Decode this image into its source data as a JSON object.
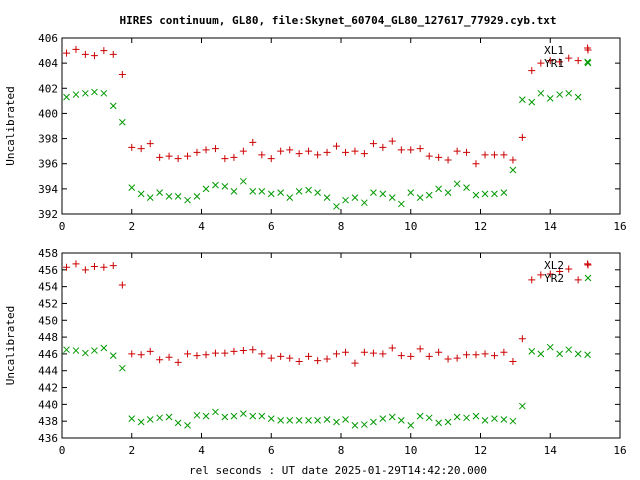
{
  "title": "HIRES continuum, GL80, file:Skynet_60704_GL80_127617_77929.cyb.txt",
  "xlabel": "rel seconds : UT date 2025-01-29T14:42:20.000",
  "colors": {
    "series1": "#cc0000",
    "series2": "#009900"
  },
  "chart_data": [
    {
      "type": "scatter",
      "ylabel": "Uncalibrated",
      "xlim": [
        0,
        16
      ],
      "ylim": [
        392,
        406
      ],
      "xticks": [
        "0",
        "2",
        "4",
        "6",
        "8",
        "10",
        "12",
        "14",
        "16"
      ],
      "yticks": [
        "392",
        "394",
        "396",
        "398",
        "400",
        "402",
        "404",
        "406"
      ],
      "legend": "top-right",
      "series": [
        {
          "name": "XL1",
          "marker": "plus",
          "x": [
            0.13,
            0.4,
            0.67,
            0.93,
            1.2,
            1.47,
            1.73,
            2.0,
            2.27,
            2.53,
            2.8,
            3.07,
            3.33,
            3.6,
            3.87,
            4.13,
            4.4,
            4.67,
            4.93,
            5.2,
            5.47,
            5.73,
            6.0,
            6.27,
            6.53,
            6.8,
            7.07,
            7.33,
            7.6,
            7.87,
            8.13,
            8.4,
            8.67,
            8.93,
            9.2,
            9.47,
            9.73,
            10.0,
            10.27,
            10.53,
            10.8,
            11.07,
            11.33,
            11.6,
            11.87,
            12.13,
            12.4,
            12.67,
            12.93,
            13.2,
            13.47,
            13.73,
            14.0,
            14.27,
            14.53,
            14.8,
            15.07
          ],
          "y": [
            404.8,
            405.1,
            404.7,
            404.6,
            405.0,
            404.7,
            403.1,
            397.3,
            397.2,
            397.6,
            396.5,
            396.6,
            396.4,
            396.6,
            396.9,
            397.1,
            397.2,
            396.4,
            396.5,
            397.0,
            397.7,
            396.7,
            396.4,
            397.0,
            397.1,
            396.8,
            397.0,
            396.7,
            396.9,
            397.4,
            396.9,
            397.0,
            396.8,
            397.6,
            397.3,
            397.8,
            397.1,
            397.1,
            397.2,
            396.6,
            396.5,
            396.3,
            397.0,
            396.9,
            396.0,
            396.7,
            396.7,
            396.7,
            396.3,
            398.1,
            403.4,
            404.0,
            404.2,
            404.1,
            404.4,
            404.2,
            405.2
          ]
        },
        {
          "name": "YR1",
          "marker": "cross",
          "x": [
            0.13,
            0.4,
            0.67,
            0.93,
            1.2,
            1.47,
            1.73,
            2.0,
            2.27,
            2.53,
            2.8,
            3.07,
            3.33,
            3.6,
            3.87,
            4.13,
            4.4,
            4.67,
            4.93,
            5.2,
            5.47,
            5.73,
            6.0,
            6.27,
            6.53,
            6.8,
            7.07,
            7.33,
            7.6,
            7.87,
            8.13,
            8.4,
            8.67,
            8.93,
            9.2,
            9.47,
            9.73,
            10.0,
            10.27,
            10.53,
            10.8,
            11.07,
            11.33,
            11.6,
            11.87,
            12.13,
            12.4,
            12.67,
            12.93,
            13.2,
            13.47,
            13.73,
            14.0,
            14.27,
            14.53,
            14.8,
            15.07
          ],
          "y": [
            401.3,
            401.5,
            401.6,
            401.7,
            401.6,
            400.6,
            399.3,
            394.1,
            393.6,
            393.3,
            393.7,
            393.4,
            393.4,
            393.1,
            393.4,
            394.0,
            394.3,
            394.2,
            393.8,
            394.6,
            393.8,
            393.8,
            393.6,
            393.7,
            393.3,
            393.8,
            393.9,
            393.7,
            393.3,
            392.6,
            393.1,
            393.3,
            392.9,
            393.7,
            393.6,
            393.3,
            392.8,
            393.7,
            393.3,
            393.5,
            394.0,
            393.7,
            394.4,
            394.1,
            393.5,
            393.6,
            393.6,
            393.7,
            395.5,
            401.1,
            400.9,
            401.6,
            401.2,
            401.5,
            401.6,
            401.3,
            404.1
          ]
        }
      ]
    },
    {
      "type": "scatter",
      "ylabel": "Uncalibrated",
      "xlim": [
        0,
        16
      ],
      "ylim": [
        436,
        458
      ],
      "xticks": [
        "0",
        "2",
        "4",
        "6",
        "8",
        "10",
        "12",
        "14",
        "16"
      ],
      "yticks": [
        "436",
        "438",
        "440",
        "442",
        "444",
        "446",
        "448",
        "450",
        "452",
        "454",
        "456",
        "458"
      ],
      "legend": "top-right",
      "series": [
        {
          "name": "XL2",
          "marker": "plus",
          "x": [
            0.13,
            0.4,
            0.67,
            0.93,
            1.2,
            1.47,
            1.73,
            2.0,
            2.27,
            2.53,
            2.8,
            3.07,
            3.33,
            3.6,
            3.87,
            4.13,
            4.4,
            4.67,
            4.93,
            5.2,
            5.47,
            5.73,
            6.0,
            6.27,
            6.53,
            6.8,
            7.07,
            7.33,
            7.6,
            7.87,
            8.13,
            8.4,
            8.67,
            8.93,
            9.2,
            9.47,
            9.73,
            10.0,
            10.27,
            10.53,
            10.8,
            11.07,
            11.33,
            11.6,
            11.87,
            12.13,
            12.4,
            12.67,
            12.93,
            13.2,
            13.47,
            13.73,
            14.0,
            14.27,
            14.53,
            14.8,
            15.07
          ],
          "y": [
            456.3,
            456.7,
            456.0,
            456.4,
            456.3,
            456.5,
            454.2,
            446.0,
            445.9,
            446.3,
            445.3,
            445.6,
            445.0,
            446.0,
            445.8,
            445.9,
            446.1,
            446.1,
            446.3,
            446.4,
            446.5,
            446.0,
            445.5,
            445.7,
            445.5,
            445.1,
            445.7,
            445.2,
            445.4,
            446.0,
            446.2,
            444.9,
            446.2,
            446.1,
            446.0,
            446.7,
            445.8,
            445.7,
            446.6,
            445.7,
            446.2,
            445.4,
            445.5,
            445.9,
            445.9,
            446.0,
            445.8,
            446.2,
            445.1,
            447.8,
            454.8,
            455.4,
            455.5,
            455.8,
            456.1,
            454.8,
            456.7
          ]
        },
        {
          "name": "YR2",
          "marker": "cross",
          "x": [
            0.13,
            0.4,
            0.67,
            0.93,
            1.2,
            1.47,
            1.73,
            2.0,
            2.27,
            2.53,
            2.8,
            3.07,
            3.33,
            3.6,
            3.87,
            4.13,
            4.4,
            4.67,
            4.93,
            5.2,
            5.47,
            5.73,
            6.0,
            6.27,
            6.53,
            6.8,
            7.07,
            7.33,
            7.6,
            7.87,
            8.13,
            8.4,
            8.67,
            8.93,
            9.2,
            9.47,
            9.73,
            10.0,
            10.27,
            10.53,
            10.8,
            11.07,
            11.33,
            11.6,
            11.87,
            12.13,
            12.4,
            12.67,
            12.93,
            13.2,
            13.47,
            13.73,
            14.0,
            14.27,
            14.53,
            14.8,
            15.07
          ],
          "y": [
            446.5,
            446.4,
            446.1,
            446.4,
            446.7,
            445.8,
            444.3,
            438.3,
            437.9,
            438.2,
            438.4,
            438.5,
            437.8,
            437.5,
            438.7,
            438.6,
            439.1,
            438.5,
            438.6,
            438.9,
            438.6,
            438.6,
            438.3,
            438.1,
            438.1,
            438.1,
            438.1,
            438.1,
            438.2,
            437.9,
            438.2,
            437.5,
            437.6,
            437.9,
            438.3,
            438.5,
            438.1,
            437.5,
            438.6,
            438.4,
            437.8,
            437.9,
            438.5,
            438.4,
            438.6,
            438.1,
            438.3,
            438.2,
            438.0,
            439.8,
            446.3,
            446.0,
            446.8,
            446.0,
            446.5,
            446.0,
            445.9
          ]
        }
      ]
    }
  ]
}
